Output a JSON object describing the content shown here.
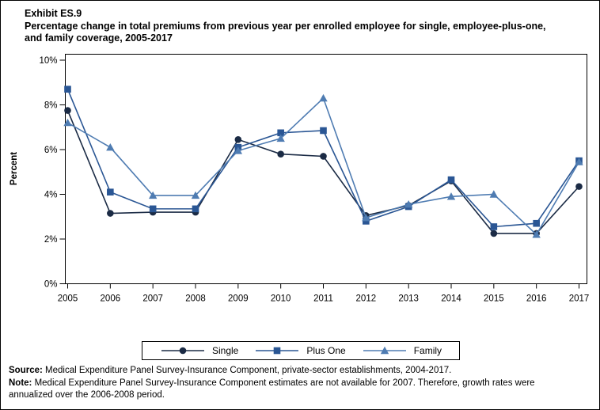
{
  "header": {
    "exhibit": "Exhibit ES.9",
    "title_line1": "Percentage change in total premiums from previous year per enrolled employee for single, employee-plus-one,",
    "title_line2": "and family coverage, 2005-2017"
  },
  "chart_data": {
    "type": "line",
    "title": "Percentage change in total premiums from previous year per enrolled employee for single, employee-plus-one, and family coverage, 2005-2017",
    "xlabel": "",
    "ylabel": "Percent",
    "ylim": [
      0,
      10
    ],
    "ytick_labels": [
      "0%",
      "2%",
      "4%",
      "6%",
      "8%",
      "10%"
    ],
    "grid": false,
    "legend_position": "bottom",
    "categories": [
      2005,
      2006,
      2007,
      2008,
      2009,
      2010,
      2011,
      2012,
      2013,
      2014,
      2015,
      2016,
      2017
    ],
    "series": [
      {
        "name": "Single",
        "marker": "circle",
        "color": "#1b2b45",
        "values": [
          7.75,
          3.15,
          3.2,
          3.2,
          6.45,
          5.8,
          5.7,
          3.05,
          3.5,
          4.6,
          2.25,
          2.25,
          4.35
        ]
      },
      {
        "name": "Plus One",
        "marker": "square",
        "color": "#2a5694",
        "values": [
          8.7,
          4.1,
          3.35,
          3.35,
          6.1,
          6.75,
          6.85,
          2.8,
          3.45,
          4.65,
          2.55,
          2.7,
          5.5
        ]
      },
      {
        "name": "Family",
        "marker": "triangle",
        "color": "#4f7cb2",
        "values": [
          7.2,
          6.1,
          3.95,
          3.95,
          5.95,
          6.5,
          8.3,
          2.95,
          3.55,
          3.9,
          4.0,
          2.2,
          5.45
        ]
      }
    ]
  },
  "footer": {
    "source_label": "Source:",
    "source_text": " Medical Expenditure Panel Survey-Insurance Component, private-sector establishments, 2004-2017.",
    "note_label": "Note:",
    "note_text": " Medical Expenditure Panel Survey-Insurance Component estimates are not available for 2007. Therefore, growth rates were annualized over the 2006-2008 period."
  }
}
